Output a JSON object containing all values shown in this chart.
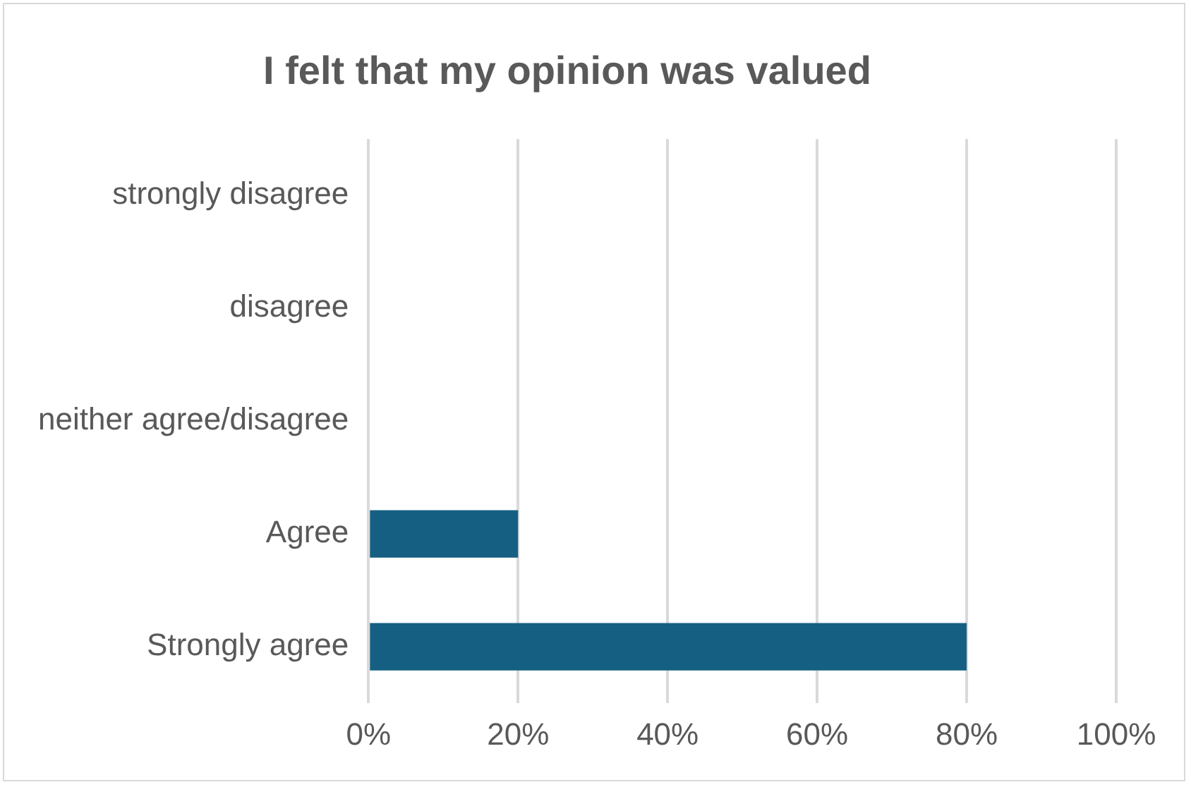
{
  "chart_data": {
    "type": "bar",
    "orientation": "horizontal",
    "title": "I felt that my opinion was valued",
    "categories": [
      "strongly disagree",
      "disagree",
      "neither agree/disagree",
      "Agree",
      "Strongly agree"
    ],
    "values": [
      0,
      0,
      0,
      20,
      80
    ],
    "color": "#156082",
    "xlim": [
      0,
      100
    ],
    "xticks": [
      {
        "value": 0,
        "label": "0%"
      },
      {
        "value": 20,
        "label": "20%"
      },
      {
        "value": 40,
        "label": "40%"
      },
      {
        "value": 60,
        "label": "60%"
      },
      {
        "value": 80,
        "label": "80%"
      },
      {
        "value": 100,
        "label": "100%"
      }
    ],
    "grid": "x",
    "legend": false
  }
}
